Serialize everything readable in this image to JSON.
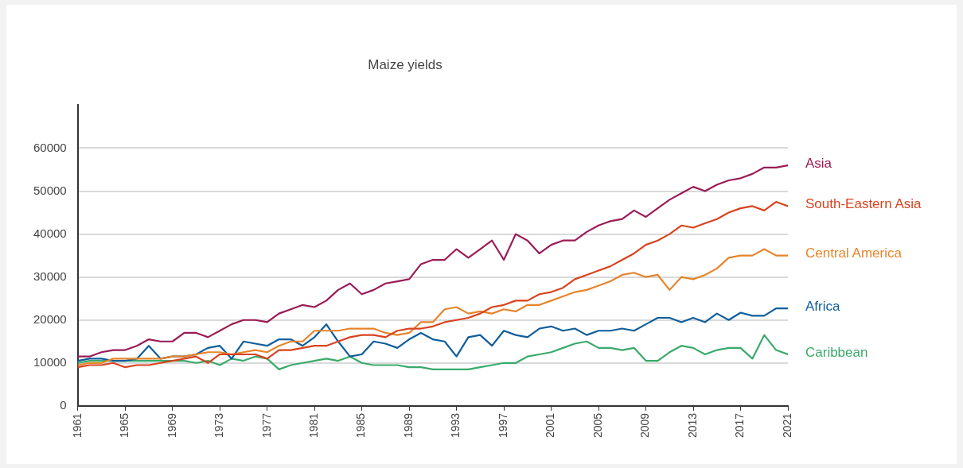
{
  "chart_data": {
    "type": "line",
    "title": "Maize yields",
    "xlim": [
      1961,
      2021
    ],
    "xticks": [
      1961,
      1965,
      1969,
      1973,
      1977,
      1981,
      1985,
      1989,
      1993,
      1997,
      2001,
      2005,
      2009,
      2013,
      2017,
      2021
    ],
    "ylim": [
      0,
      70000
    ],
    "yticks": [
      0,
      10000,
      20000,
      30000,
      40000,
      50000,
      60000
    ],
    "grid": "y",
    "legend": false,
    "marker": "none",
    "line_style": "solid",
    "x": [
      1961,
      1962,
      1963,
      1964,
      1965,
      1966,
      1967,
      1968,
      1969,
      1970,
      1971,
      1972,
      1973,
      1974,
      1975,
      1976,
      1977,
      1978,
      1979,
      1980,
      1981,
      1982,
      1983,
      1984,
      1985,
      1986,
      1987,
      1988,
      1989,
      1990,
      1991,
      1992,
      1993,
      1994,
      1995,
      1996,
      1997,
      1998,
      1999,
      2000,
      2001,
      2002,
      2003,
      2004,
      2005,
      2006,
      2007,
      2008,
      2009,
      2010,
      2011,
      2012,
      2013,
      2014,
      2015,
      2016,
      2017,
      2018,
      2019,
      2020,
      2021
    ],
    "series": [
      {
        "name": "Asia",
        "color": "#9b1b55",
        "values": [
          11500,
          11500,
          12500,
          13000,
          13000,
          14000,
          15500,
          15000,
          15000,
          17000,
          17000,
          16000,
          17500,
          19000,
          20000,
          20000,
          19500,
          21500,
          22500,
          23500,
          23000,
          24500,
          27000,
          28500,
          26000,
          27000,
          28500,
          29000,
          29500,
          33000,
          34000,
          34000,
          36500,
          34500,
          36500,
          38500,
          34000,
          40000,
          38500,
          35500,
          37500,
          38500,
          38500,
          40500,
          42000,
          43000,
          43500,
          45500,
          44000,
          46000,
          48000,
          49500,
          51000,
          50000,
          51500,
          52500,
          53000,
          54000,
          55500,
          55500,
          56000
        ]
      },
      {
        "name": "South-Eastern Asia",
        "color": "#d9431e",
        "values": [
          9000,
          9500,
          9500,
          10000,
          9000,
          9500,
          9500,
          10000,
          10500,
          11000,
          11500,
          10000,
          12000,
          12000,
          12000,
          12000,
          11000,
          13000,
          13000,
          13500,
          14000,
          14000,
          15000,
          16000,
          16500,
          16500,
          16000,
          17500,
          18000,
          18000,
          18500,
          19500,
          20000,
          20500,
          21500,
          23000,
          23500,
          24500,
          24500,
          26000,
          26500,
          27500,
          29500,
          30500,
          31500,
          32500,
          34000,
          35500,
          37500,
          38500,
          40000,
          42000,
          41500,
          42500,
          43500,
          45000,
          46000,
          46500,
          45500,
          47500,
          46500
        ]
      },
      {
        "name": "Central America",
        "color": "#e6852a",
        "values": [
          9500,
          10000,
          10000,
          11000,
          11000,
          11000,
          11000,
          11000,
          11500,
          11500,
          12000,
          12500,
          12500,
          12000,
          12500,
          13000,
          12500,
          14000,
          15000,
          15000,
          17500,
          17500,
          17500,
          18000,
          18000,
          18000,
          17000,
          16500,
          17000,
          19500,
          19500,
          22500,
          23000,
          21500,
          22000,
          21500,
          22500,
          22000,
          23500,
          23500,
          24500,
          25500,
          26500,
          27000,
          28000,
          29000,
          30500,
          31000,
          30000,
          30500,
          27000,
          30000,
          29500,
          30500,
          32000,
          34500,
          35000,
          35000,
          36500,
          35000,
          35000
        ]
      },
      {
        "name": "Africa",
        "color": "#0f5e9c",
        "values": [
          10500,
          11000,
          11000,
          10500,
          10500,
          11000,
          14000,
          11000,
          11500,
          11500,
          12000,
          13500,
          14000,
          11000,
          15000,
          14500,
          14000,
          15500,
          15500,
          14000,
          16000,
          19000,
          15000,
          11500,
          12000,
          15000,
          14500,
          13500,
          15500,
          17000,
          15500,
          15000,
          11500,
          16000,
          16500,
          14000,
          17500,
          16500,
          16000,
          18000,
          18500,
          17500,
          18000,
          16500,
          17500,
          17500,
          18000,
          17500,
          19000,
          20500,
          20500,
          19500,
          20500,
          19500,
          21500,
          20000,
          21700,
          21000,
          21000,
          22700,
          22700
        ]
      },
      {
        "name": "Caribbean",
        "color": "#3aaa6b",
        "values": [
          10000,
          10500,
          10500,
          10500,
          10500,
          10500,
          10500,
          10500,
          10500,
          10500,
          10000,
          10500,
          9500,
          11000,
          10500,
          11500,
          11000,
          8500,
          9500,
          10000,
          10500,
          11000,
          10500,
          11500,
          10000,
          9500,
          9500,
          9500,
          9000,
          9000,
          8500,
          8500,
          8500,
          8500,
          9000,
          9500,
          10000,
          10000,
          11500,
          12000,
          12500,
          13500,
          14500,
          15000,
          13500,
          13500,
          13000,
          13500,
          10500,
          10500,
          12500,
          14000,
          13500,
          12000,
          13000,
          13500,
          13500,
          11000,
          16500,
          13000,
          12000
        ]
      }
    ]
  }
}
